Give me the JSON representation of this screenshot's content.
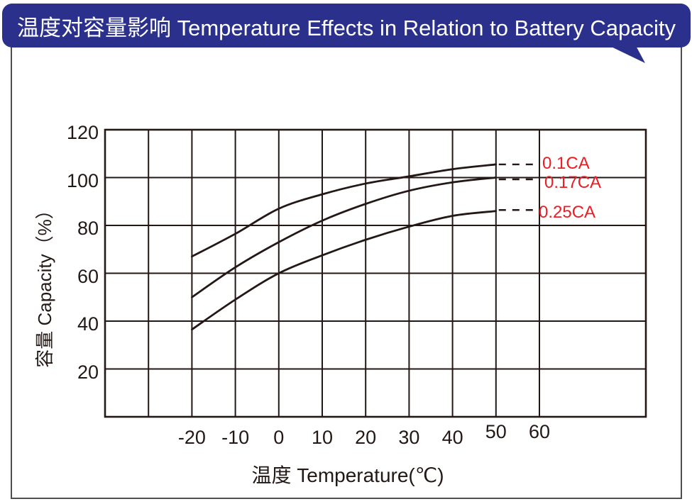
{
  "banner": {
    "title": "温度对容量影响  Temperature Effects in Relation to Battery Capacity",
    "background_color": "#2a308c",
    "text_color": "#ffffff"
  },
  "chart_data": {
    "type": "line",
    "title": "温度对容量影响 Temperature Effects in Relation to Battery Capacity",
    "xlabel": "温度  Temperature(℃)",
    "ylabel": "容量  Capacity（%）",
    "x_ticks": [
      -20,
      -10,
      0,
      10,
      20,
      30,
      40,
      50,
      60
    ],
    "y_ticks": [
      120,
      100,
      80,
      60,
      40,
      20
    ],
    "xlim": [
      -40,
      85
    ],
    "ylim": [
      0,
      120
    ],
    "grid": true,
    "line_color": "#231815",
    "series_label_color": "#ed1c24",
    "legend_position": "right-inline-at-line-end",
    "series": [
      {
        "name": "0.1CA",
        "x": [
          -20,
          -10,
          0,
          10,
          20,
          30,
          40,
          50
        ],
        "y": [
          67,
          76.5,
          87,
          93,
          97.5,
          100.5,
          103.5,
          105.5
        ],
        "dashed_leader_to_label": true
      },
      {
        "name": "0.17CA",
        "x": [
          -20,
          -10,
          0,
          10,
          20,
          30,
          40,
          50
        ],
        "y": [
          50,
          62.5,
          73,
          82,
          89,
          94.5,
          98,
          100
        ],
        "dashed_leader_to_label": true
      },
      {
        "name": "0.25CA",
        "x": [
          -20,
          -10,
          0,
          10,
          20,
          30,
          40,
          50
        ],
        "y": [
          36.5,
          49,
          60,
          67.5,
          74,
          79.5,
          84,
          86
        ],
        "dashed_leader_to_label": true
      }
    ]
  }
}
